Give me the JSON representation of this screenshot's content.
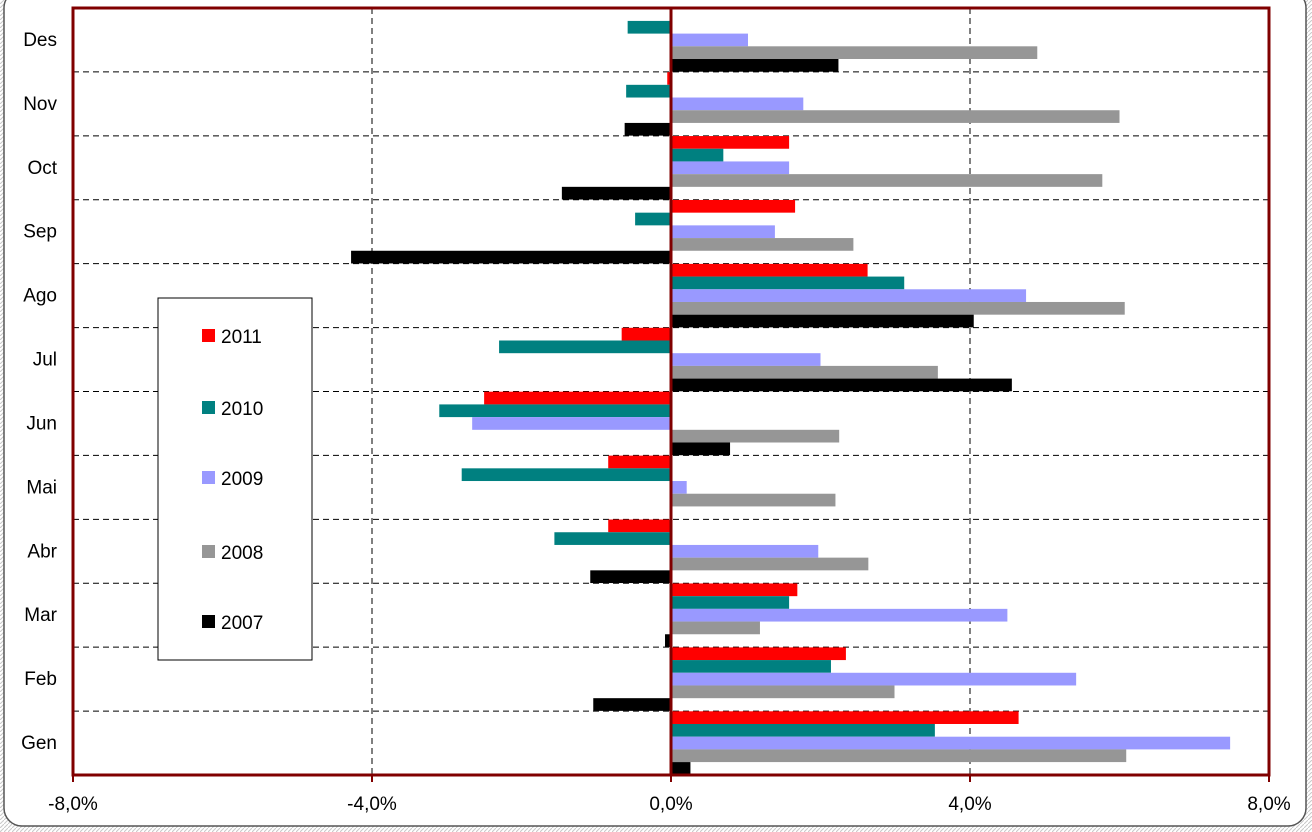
{
  "chart_data": {
    "type": "bar",
    "orientation": "horizontal",
    "categories": [
      "Gen",
      "Feb",
      "Mar",
      "Abr",
      "Mai",
      "Jun",
      "Jul",
      "Ago",
      "Sep",
      "Oct",
      "Nov",
      "Des"
    ],
    "series": [
      {
        "name": "2011",
        "color": "#ff0000",
        "values": [
          4.65,
          2.34,
          1.69,
          -0.84,
          -0.84,
          -2.5,
          -0.66,
          2.63,
          1.66,
          1.58,
          -0.05,
          null
        ]
      },
      {
        "name": "2010",
        "color": "#008080",
        "values": [
          3.53,
          2.14,
          1.58,
          -1.56,
          -2.8,
          -3.1,
          -2.3,
          3.12,
          -0.48,
          0.7,
          -0.6,
          -0.58
        ]
      },
      {
        "name": "2009",
        "color": "#9999ff",
        "values": [
          7.48,
          5.42,
          4.5,
          1.97,
          0.21,
          -2.66,
          2.0,
          4.75,
          1.39,
          1.58,
          1.77,
          1.03
        ]
      },
      {
        "name": "2008",
        "color": "#969696",
        "values": [
          6.09,
          2.99,
          1.19,
          2.64,
          2.2,
          2.25,
          3.57,
          6.07,
          2.44,
          5.77,
          6.0,
          4.9
        ]
      },
      {
        "name": "2007",
        "color": "#000000",
        "values": [
          0.26,
          -1.04,
          -0.08,
          -1.08,
          null,
          0.79,
          4.56,
          4.05,
          -4.28,
          -1.46,
          -0.62,
          2.24
        ]
      }
    ],
    "x_ticks": [
      "-8,0%",
      "-4,0%",
      "0,0%",
      "4,0%",
      "8,0%"
    ],
    "xlim": [
      -8,
      8
    ],
    "grid": true,
    "legend_position": "left"
  }
}
